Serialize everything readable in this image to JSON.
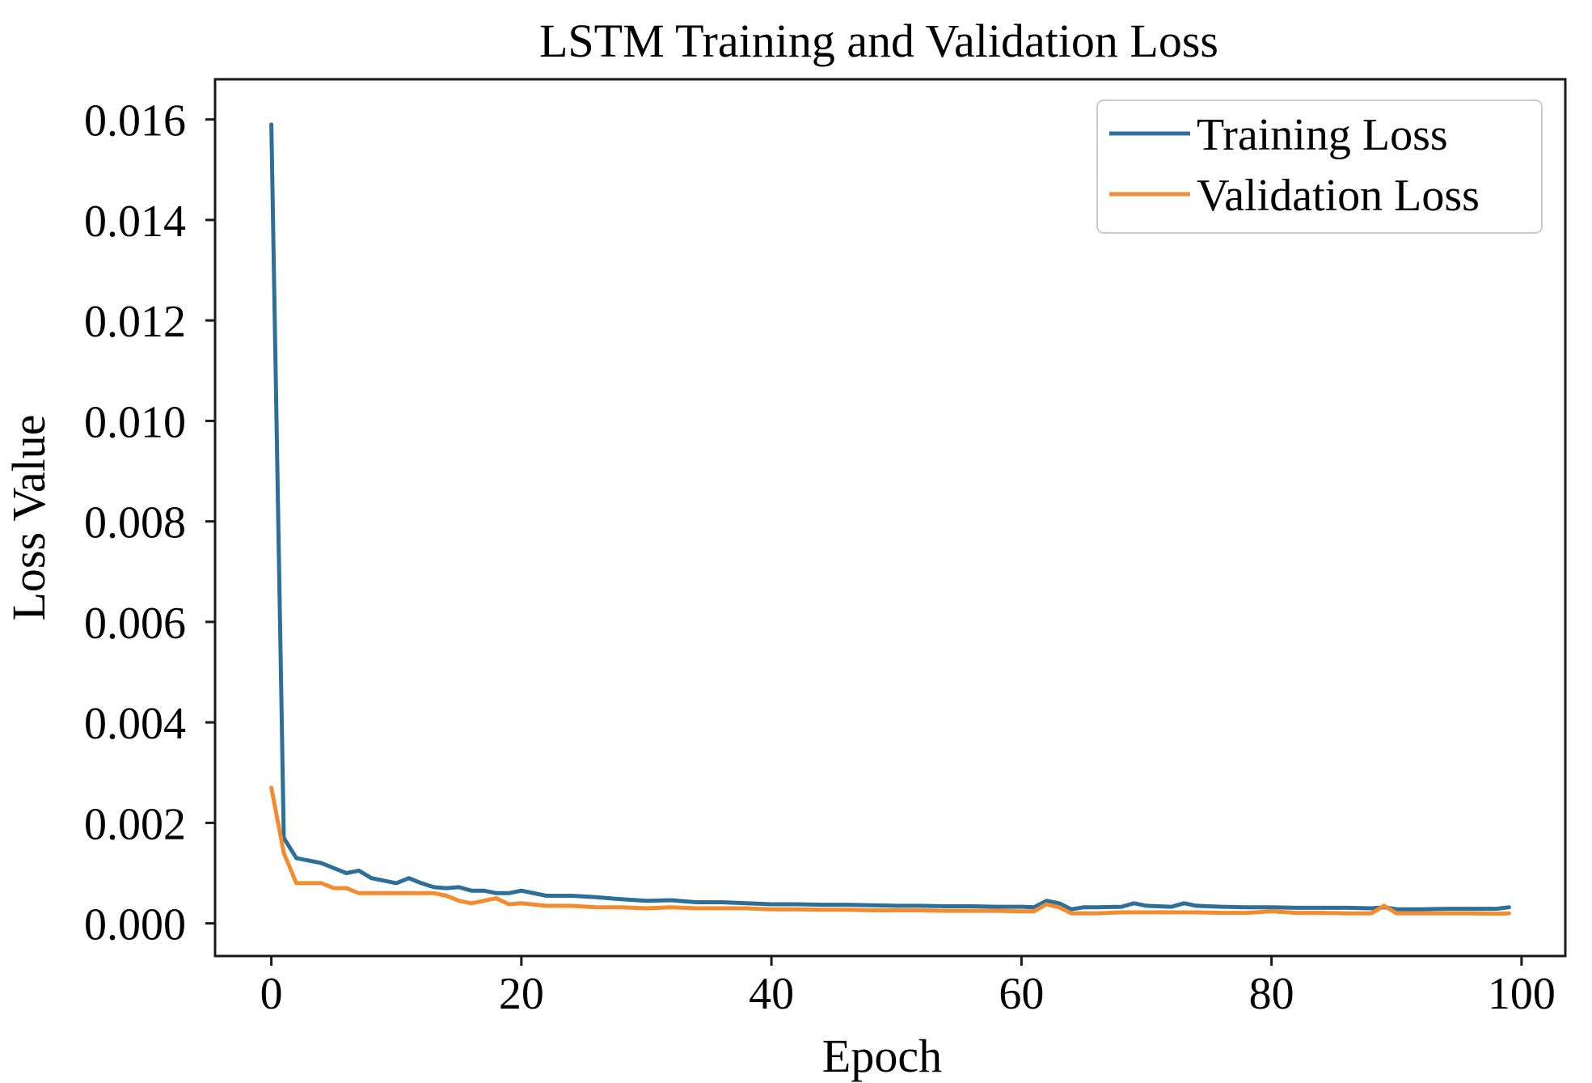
{
  "chart_data": {
    "type": "line",
    "title": "LSTM Training and Validation Loss",
    "xlabel": "Epoch",
    "ylabel": "Loss Value",
    "xlim": [
      -4.5,
      103.5
    ],
    "ylim": [
      -0.00065,
      0.0168
    ],
    "xticks": [
      0,
      20,
      40,
      60,
      80,
      100
    ],
    "xtick_labels": [
      "0",
      "20",
      "40",
      "60",
      "80",
      "100"
    ],
    "yticks": [
      0.0,
      0.002,
      0.004,
      0.006,
      0.008,
      0.01,
      0.012,
      0.014,
      0.016
    ],
    "ytick_labels": [
      "0.000",
      "0.002",
      "0.004",
      "0.006",
      "0.008",
      "0.010",
      "0.012",
      "0.014",
      "0.016"
    ],
    "grid": false,
    "legend_position": "top-right",
    "series": [
      {
        "name": "Training Loss",
        "color": "#2e6f99",
        "x": [
          0,
          1,
          2,
          3,
          4,
          5,
          6,
          7,
          8,
          9,
          10,
          11,
          12,
          13,
          14,
          15,
          16,
          17,
          18,
          19,
          20,
          22,
          24,
          26,
          28,
          30,
          32,
          34,
          36,
          38,
          40,
          42,
          44,
          46,
          48,
          50,
          52,
          54,
          56,
          58,
          60,
          61,
          62,
          63,
          64,
          65,
          66,
          68,
          69,
          70,
          72,
          73,
          74,
          76,
          78,
          80,
          82,
          84,
          86,
          88,
          89,
          90,
          92,
          94,
          96,
          98,
          99
        ],
        "values": [
          0.0159,
          0.0017,
          0.0013,
          0.00125,
          0.0012,
          0.0011,
          0.001,
          0.00105,
          0.0009,
          0.00085,
          0.0008,
          0.0009,
          0.0008,
          0.00072,
          0.0007,
          0.00072,
          0.00065,
          0.00065,
          0.0006,
          0.0006,
          0.00065,
          0.00055,
          0.00055,
          0.00052,
          0.00048,
          0.00045,
          0.00046,
          0.00042,
          0.00042,
          0.0004,
          0.00038,
          0.00038,
          0.00037,
          0.00037,
          0.00036,
          0.00035,
          0.00035,
          0.00034,
          0.00034,
          0.00033,
          0.00033,
          0.00032,
          0.00045,
          0.0004,
          0.00028,
          0.00032,
          0.00032,
          0.00033,
          0.0004,
          0.00035,
          0.00033,
          0.0004,
          0.00035,
          0.00033,
          0.00032,
          0.00032,
          0.00031,
          0.00031,
          0.00031,
          0.0003,
          0.00032,
          0.00028,
          0.00028,
          0.00029,
          0.00029,
          0.00029,
          0.00032
        ]
      },
      {
        "name": "Validation Loss",
        "color": "#f28c2e",
        "x": [
          0,
          1,
          2,
          3,
          4,
          5,
          6,
          7,
          8,
          9,
          10,
          11,
          12,
          13,
          14,
          15,
          16,
          17,
          18,
          19,
          20,
          22,
          24,
          26,
          28,
          30,
          32,
          34,
          36,
          38,
          40,
          42,
          44,
          46,
          48,
          50,
          52,
          54,
          56,
          58,
          60,
          61,
          62,
          63,
          64,
          65,
          66,
          68,
          70,
          72,
          74,
          76,
          78,
          80,
          82,
          84,
          86,
          88,
          89,
          90,
          92,
          94,
          96,
          98,
          99
        ],
        "values": [
          0.0027,
          0.0014,
          0.0008,
          0.0008,
          0.0008,
          0.0007,
          0.0007,
          0.0006,
          0.0006,
          0.0006,
          0.0006,
          0.0006,
          0.0006,
          0.0006,
          0.00055,
          0.00045,
          0.0004,
          0.00045,
          0.0005,
          0.00038,
          0.0004,
          0.00035,
          0.00035,
          0.00032,
          0.00032,
          0.0003,
          0.00032,
          0.0003,
          0.0003,
          0.0003,
          0.00028,
          0.00028,
          0.00027,
          0.00027,
          0.00026,
          0.00026,
          0.00026,
          0.00025,
          0.00025,
          0.00025,
          0.00024,
          0.00024,
          0.00038,
          0.00032,
          0.0002,
          0.0002,
          0.0002,
          0.00022,
          0.00022,
          0.00022,
          0.00022,
          0.00021,
          0.00021,
          0.00024,
          0.00021,
          0.00021,
          0.0002,
          0.0002,
          0.00035,
          0.0002,
          0.0002,
          0.0002,
          0.0002,
          0.00019,
          0.0002
        ]
      }
    ]
  }
}
